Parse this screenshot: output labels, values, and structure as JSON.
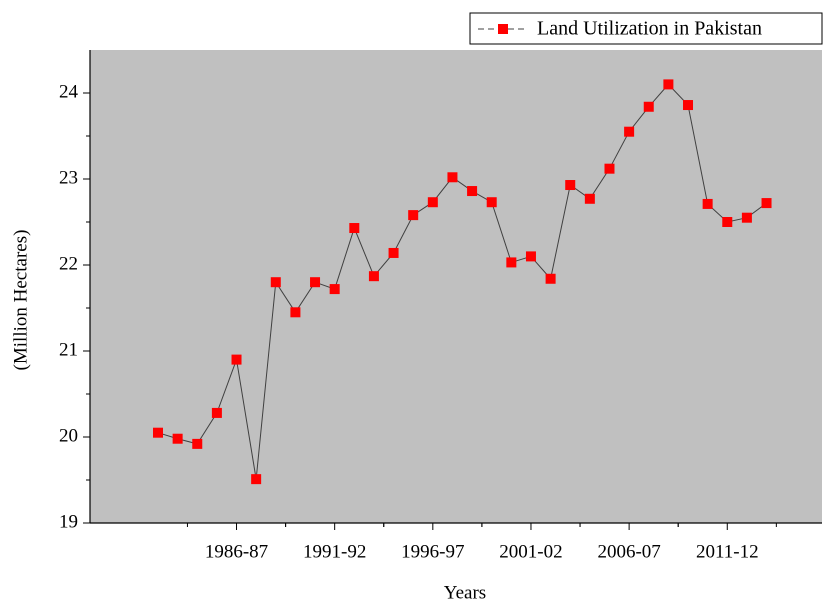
{
  "chart_data": {
    "type": "line",
    "x_label": "Years",
    "y_label": "(Million Hectares)",
    "categories": [
      null,
      null,
      null,
      null,
      "1986-87",
      null,
      null,
      null,
      null,
      "1991-92",
      null,
      null,
      null,
      null,
      "1996-97",
      null,
      null,
      null,
      null,
      "2001-02",
      null,
      null,
      null,
      null,
      "2006-07",
      null,
      null,
      null,
      null,
      "2011-12",
      null,
      null
    ],
    "series": [
      {
        "name": "Land Utilization in Pakistan",
        "color": "#ff0000",
        "line_color": "#404040",
        "values": [
          20.05,
          19.98,
          19.92,
          20.28,
          20.9,
          19.51,
          21.8,
          21.45,
          21.8,
          21.72,
          22.43,
          21.87,
          22.14,
          22.58,
          22.73,
          23.02,
          22.86,
          22.73,
          22.03,
          22.1,
          21.84,
          22.93,
          22.77,
          23.12,
          23.55,
          23.84,
          24.1,
          23.86,
          22.71,
          22.5,
          22.55,
          22.72
        ]
      }
    ],
    "ylim": [
      19,
      24.5
    ],
    "yticks": [
      19,
      20,
      21,
      22,
      23,
      24
    ],
    "background": "#c0c0c0",
    "legend": "top-right"
  }
}
